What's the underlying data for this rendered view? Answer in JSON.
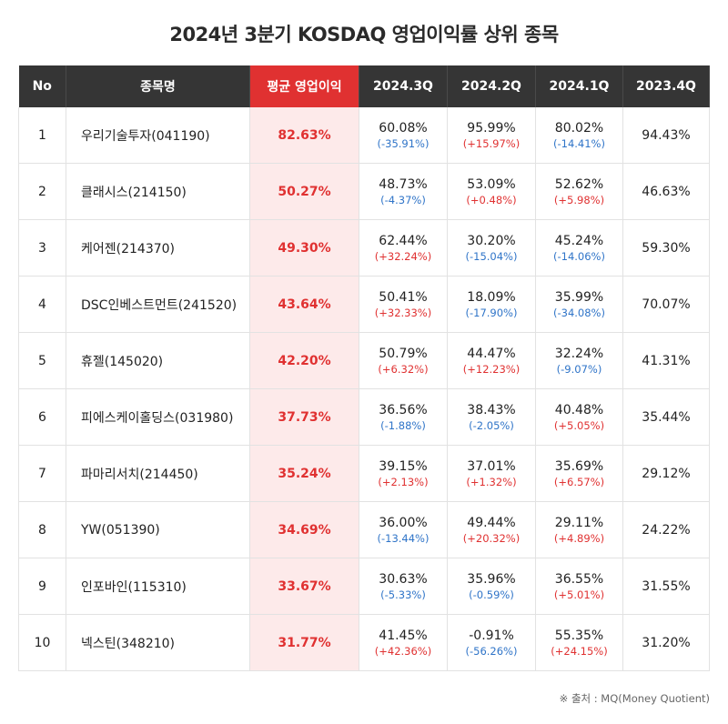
{
  "title": "2024년 3분기 KOSDAQ 영업이익률 상위 종목",
  "headers": {
    "no": "No",
    "name": "종목명",
    "avg": "평균 영업이익",
    "q3_2024": "2024.3Q",
    "q2_2024": "2024.2Q",
    "q1_2024": "2024.1Q",
    "q4_2023": "2023.4Q"
  },
  "colors": {
    "header_bg": "#353535",
    "accent": "#e03131",
    "avg_bg": "#fdeaea",
    "positive": "#e03131",
    "negative": "#2f74c8"
  },
  "rows": [
    {
      "no": "1",
      "name": "우리기술투자(041190)",
      "avg": "82.63%",
      "q3": {
        "v": "60.08%",
        "c": "(-35.91%)"
      },
      "q2": {
        "v": "95.99%",
        "c": "(+15.97%)"
      },
      "q1": {
        "v": "80.02%",
        "c": "(-14.41%)"
      },
      "q4": "94.43%"
    },
    {
      "no": "2",
      "name": "클래시스(214150)",
      "avg": "50.27%",
      "q3": {
        "v": "48.73%",
        "c": "(-4.37%)"
      },
      "q2": {
        "v": "53.09%",
        "c": "(+0.48%)"
      },
      "q1": {
        "v": "52.62%",
        "c": "(+5.98%)"
      },
      "q4": "46.63%"
    },
    {
      "no": "3",
      "name": "케어젠(214370)",
      "avg": "49.30%",
      "q3": {
        "v": "62.44%",
        "c": "(+32.24%)"
      },
      "q2": {
        "v": "30.20%",
        "c": "(-15.04%)"
      },
      "q1": {
        "v": "45.24%",
        "c": "(-14.06%)"
      },
      "q4": "59.30%"
    },
    {
      "no": "4",
      "name": "DSC인베스트먼트(241520)",
      "avg": "43.64%",
      "q3": {
        "v": "50.41%",
        "c": "(+32.33%)"
      },
      "q2": {
        "v": "18.09%",
        "c": "(-17.90%)"
      },
      "q1": {
        "v": "35.99%",
        "c": "(-34.08%)"
      },
      "q4": "70.07%"
    },
    {
      "no": "5",
      "name": "휴젤(145020)",
      "avg": "42.20%",
      "q3": {
        "v": "50.79%",
        "c": "(+6.32%)"
      },
      "q2": {
        "v": "44.47%",
        "c": "(+12.23%)"
      },
      "q1": {
        "v": "32.24%",
        "c": "(-9.07%)"
      },
      "q4": "41.31%"
    },
    {
      "no": "6",
      "name": "피에스케이홀딩스(031980)",
      "avg": "37.73%",
      "q3": {
        "v": "36.56%",
        "c": "(-1.88%)"
      },
      "q2": {
        "v": "38.43%",
        "c": "(-2.05%)"
      },
      "q1": {
        "v": "40.48%",
        "c": "(+5.05%)"
      },
      "q4": "35.44%"
    },
    {
      "no": "7",
      "name": "파마리서치(214450)",
      "avg": "35.24%",
      "q3": {
        "v": "39.15%",
        "c": "(+2.13%)"
      },
      "q2": {
        "v": "37.01%",
        "c": "(+1.32%)"
      },
      "q1": {
        "v": "35.69%",
        "c": "(+6.57%)"
      },
      "q4": "29.12%"
    },
    {
      "no": "8",
      "name": "YW(051390)",
      "avg": "34.69%",
      "q3": {
        "v": "36.00%",
        "c": "(-13.44%)"
      },
      "q2": {
        "v": "49.44%",
        "c": "(+20.32%)"
      },
      "q1": {
        "v": "29.11%",
        "c": "(+4.89%)"
      },
      "q4": "24.22%"
    },
    {
      "no": "9",
      "name": "인포바인(115310)",
      "avg": "33.67%",
      "q3": {
        "v": "30.63%",
        "c": "(-5.33%)"
      },
      "q2": {
        "v": "35.96%",
        "c": "(-0.59%)"
      },
      "q1": {
        "v": "36.55%",
        "c": "(+5.01%)"
      },
      "q4": "31.55%"
    },
    {
      "no": "10",
      "name": "넥스틴(348210)",
      "avg": "31.77%",
      "q3": {
        "v": "41.45%",
        "c": "(+42.36%)"
      },
      "q2": {
        "v": "-0.91%",
        "c": "(-56.26%)"
      },
      "q1": {
        "v": "55.35%",
        "c": "(+24.15%)"
      },
      "q4": "31.20%"
    }
  ],
  "source": "※ 출처 : MQ(Money Quotient)"
}
